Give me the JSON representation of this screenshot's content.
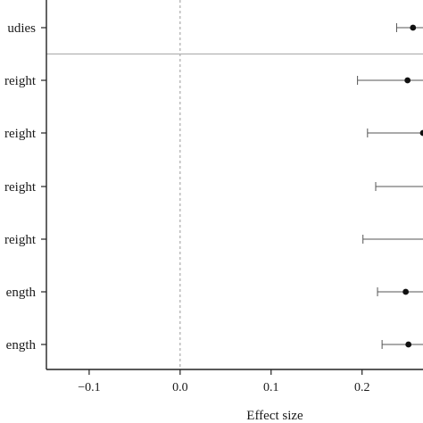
{
  "chart_data": {
    "type": "forest",
    "title": "",
    "xlabel": "Effect size",
    "ylabel": "",
    "xlim": [
      -0.147,
      0.267
    ],
    "xticks": [
      -0.1,
      0.0,
      0.1,
      0.2
    ],
    "xtick_labels": [
      "−0.1",
      "0.0",
      "0.1",
      "0.2"
    ],
    "reference_line": 0.0,
    "rows": [
      {
        "label": "udies",
        "estimate": 0.256,
        "lower": 0.238,
        "upper": 0.267
      },
      {
        "label": "reight",
        "estimate": 0.25,
        "lower": 0.195,
        "upper": 0.267
      },
      {
        "label": "reight",
        "estimate": 0.267,
        "lower": 0.206,
        "upper": 0.267
      },
      {
        "label": "reight",
        "estimate": null,
        "lower": 0.215,
        "upper": 0.267
      },
      {
        "label": "reight",
        "estimate": null,
        "lower": 0.201,
        "upper": 0.267
      },
      {
        "label": "ength",
        "estimate": 0.248,
        "lower": 0.217,
        "upper": 0.267
      },
      {
        "label": "ength",
        "estimate": 0.251,
        "lower": 0.222,
        "upper": 0.267
      }
    ],
    "separator_after_row": 0,
    "grid": false
  }
}
